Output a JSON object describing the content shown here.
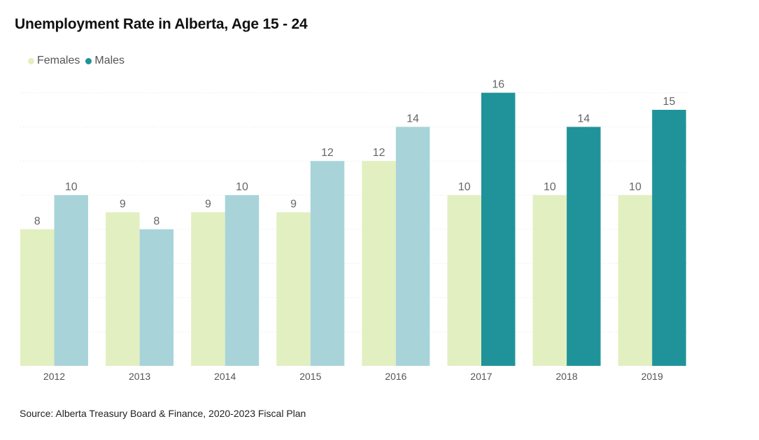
{
  "chart_data": {
    "type": "bar",
    "title": "Unemployment Rate in Alberta, Age 15 - 24",
    "categories": [
      "2012",
      "2013",
      "2014",
      "2015",
      "2016",
      "2017",
      "2018",
      "2019"
    ],
    "series": [
      {
        "name": "Females",
        "values": [
          8,
          9,
          9,
          9,
          12,
          10,
          10,
          10
        ],
        "color": "#e2efc0"
      },
      {
        "name": "Males",
        "values": [
          10,
          8,
          10,
          12,
          14,
          16,
          14,
          15
        ],
        "color": "#a8d4d9",
        "highlight_color": "#20939a"
      }
    ],
    "highlight_from_category": "2017",
    "ylim": [
      0,
      16
    ],
    "grid": true,
    "legend_position": "top-left",
    "label_color": "#666666",
    "source": "Source: Alberta Treasury Board & Finance, 2020-2023 Fiscal Plan"
  }
}
